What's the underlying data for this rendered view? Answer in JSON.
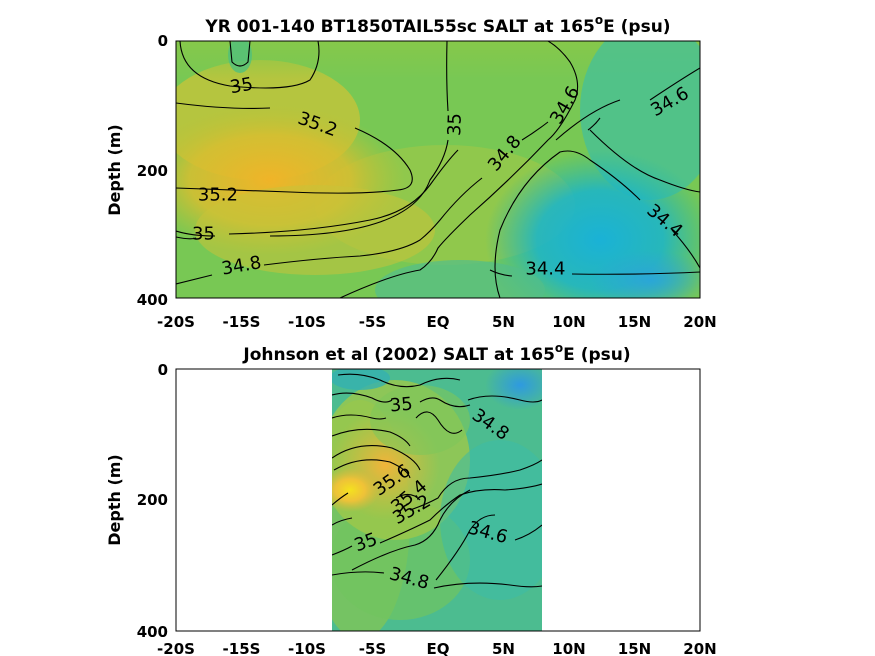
{
  "chart_data": [
    {
      "type": "contour",
      "title_main": "YR 001-140 BT1850TAIL55sc SALT at 165",
      "title_sup": "o",
      "title_tail": "E (psu)",
      "ylabel": "Depth (m)",
      "xlabel": "",
      "x_ticks": [
        "-20S",
        "-15S",
        "-10S",
        "-5S",
        "EQ",
        "5N",
        "10N",
        "15N",
        "20N"
      ],
      "y_ticks": [
        "0",
        "200",
        "400"
      ],
      "xlim": [
        -20,
        20
      ],
      "ylim": [
        0,
        400
      ],
      "contour_labels": [
        {
          "text": "35",
          "lat": -15,
          "depth": 70,
          "rot": -10
        },
        {
          "text": "35.2",
          "lat": -9.2,
          "depth": 130,
          "rot": 20
        },
        {
          "text": "35",
          "lat": 1.3,
          "depth": 130,
          "rot": -88
        },
        {
          "text": "34.6",
          "lat": 9.7,
          "depth": 100,
          "rot": -60
        },
        {
          "text": "34.6",
          "lat": 17.7,
          "depth": 95,
          "rot": -30
        },
        {
          "text": "34.8",
          "lat": 5.1,
          "depth": 175,
          "rot": -50
        },
        {
          "text": "35.2",
          "lat": -16.8,
          "depth": 240,
          "rot": 0
        },
        {
          "text": "35",
          "lat": -17.9,
          "depth": 300,
          "rot": 0
        },
        {
          "text": "34.8",
          "lat": -15.0,
          "depth": 350,
          "rot": -10
        },
        {
          "text": "34.4",
          "lat": 17.3,
          "depth": 280,
          "rot": 40
        },
        {
          "text": "34.4",
          "lat": 8.2,
          "depth": 355,
          "rot": 0
        }
      ]
    },
    {
      "type": "contour",
      "title_main": "Johnson et al (2002) SALT at 165",
      "title_sup": "o",
      "title_tail": "E (psu)",
      "ylabel": "Depth (m)",
      "xlabel": "",
      "x_ticks": [
        "-20S",
        "-15S",
        "-10S",
        "-5S",
        "EQ",
        "5N",
        "10N",
        "15N",
        "20N"
      ],
      "y_ticks": [
        "0",
        "200",
        "400"
      ],
      "xlim": [
        -20,
        20
      ],
      "ylim": [
        0,
        400
      ],
      "data_extent_lat": [
        -8,
        8
      ],
      "contour_labels": [
        {
          "text": "35",
          "lat": -2.8,
          "depth": 55,
          "rot": -5
        },
        {
          "text": "34.8",
          "lat": 4.0,
          "depth": 85,
          "rot": 35
        },
        {
          "text": "35.6",
          "lat": -3.5,
          "depth": 170,
          "rot": -35
        },
        {
          "text": "35.4",
          "lat": -2.2,
          "depth": 195,
          "rot": -40
        },
        {
          "text": "35.2",
          "lat": -2.0,
          "depth": 215,
          "rot": -30
        },
        {
          "text": "35",
          "lat": -5.5,
          "depth": 265,
          "rot": -20
        },
        {
          "text": "34.6",
          "lat": 3.8,
          "depth": 250,
          "rot": 15
        },
        {
          "text": "34.8",
          "lat": -2.2,
          "depth": 320,
          "rot": 15
        }
      ]
    }
  ]
}
